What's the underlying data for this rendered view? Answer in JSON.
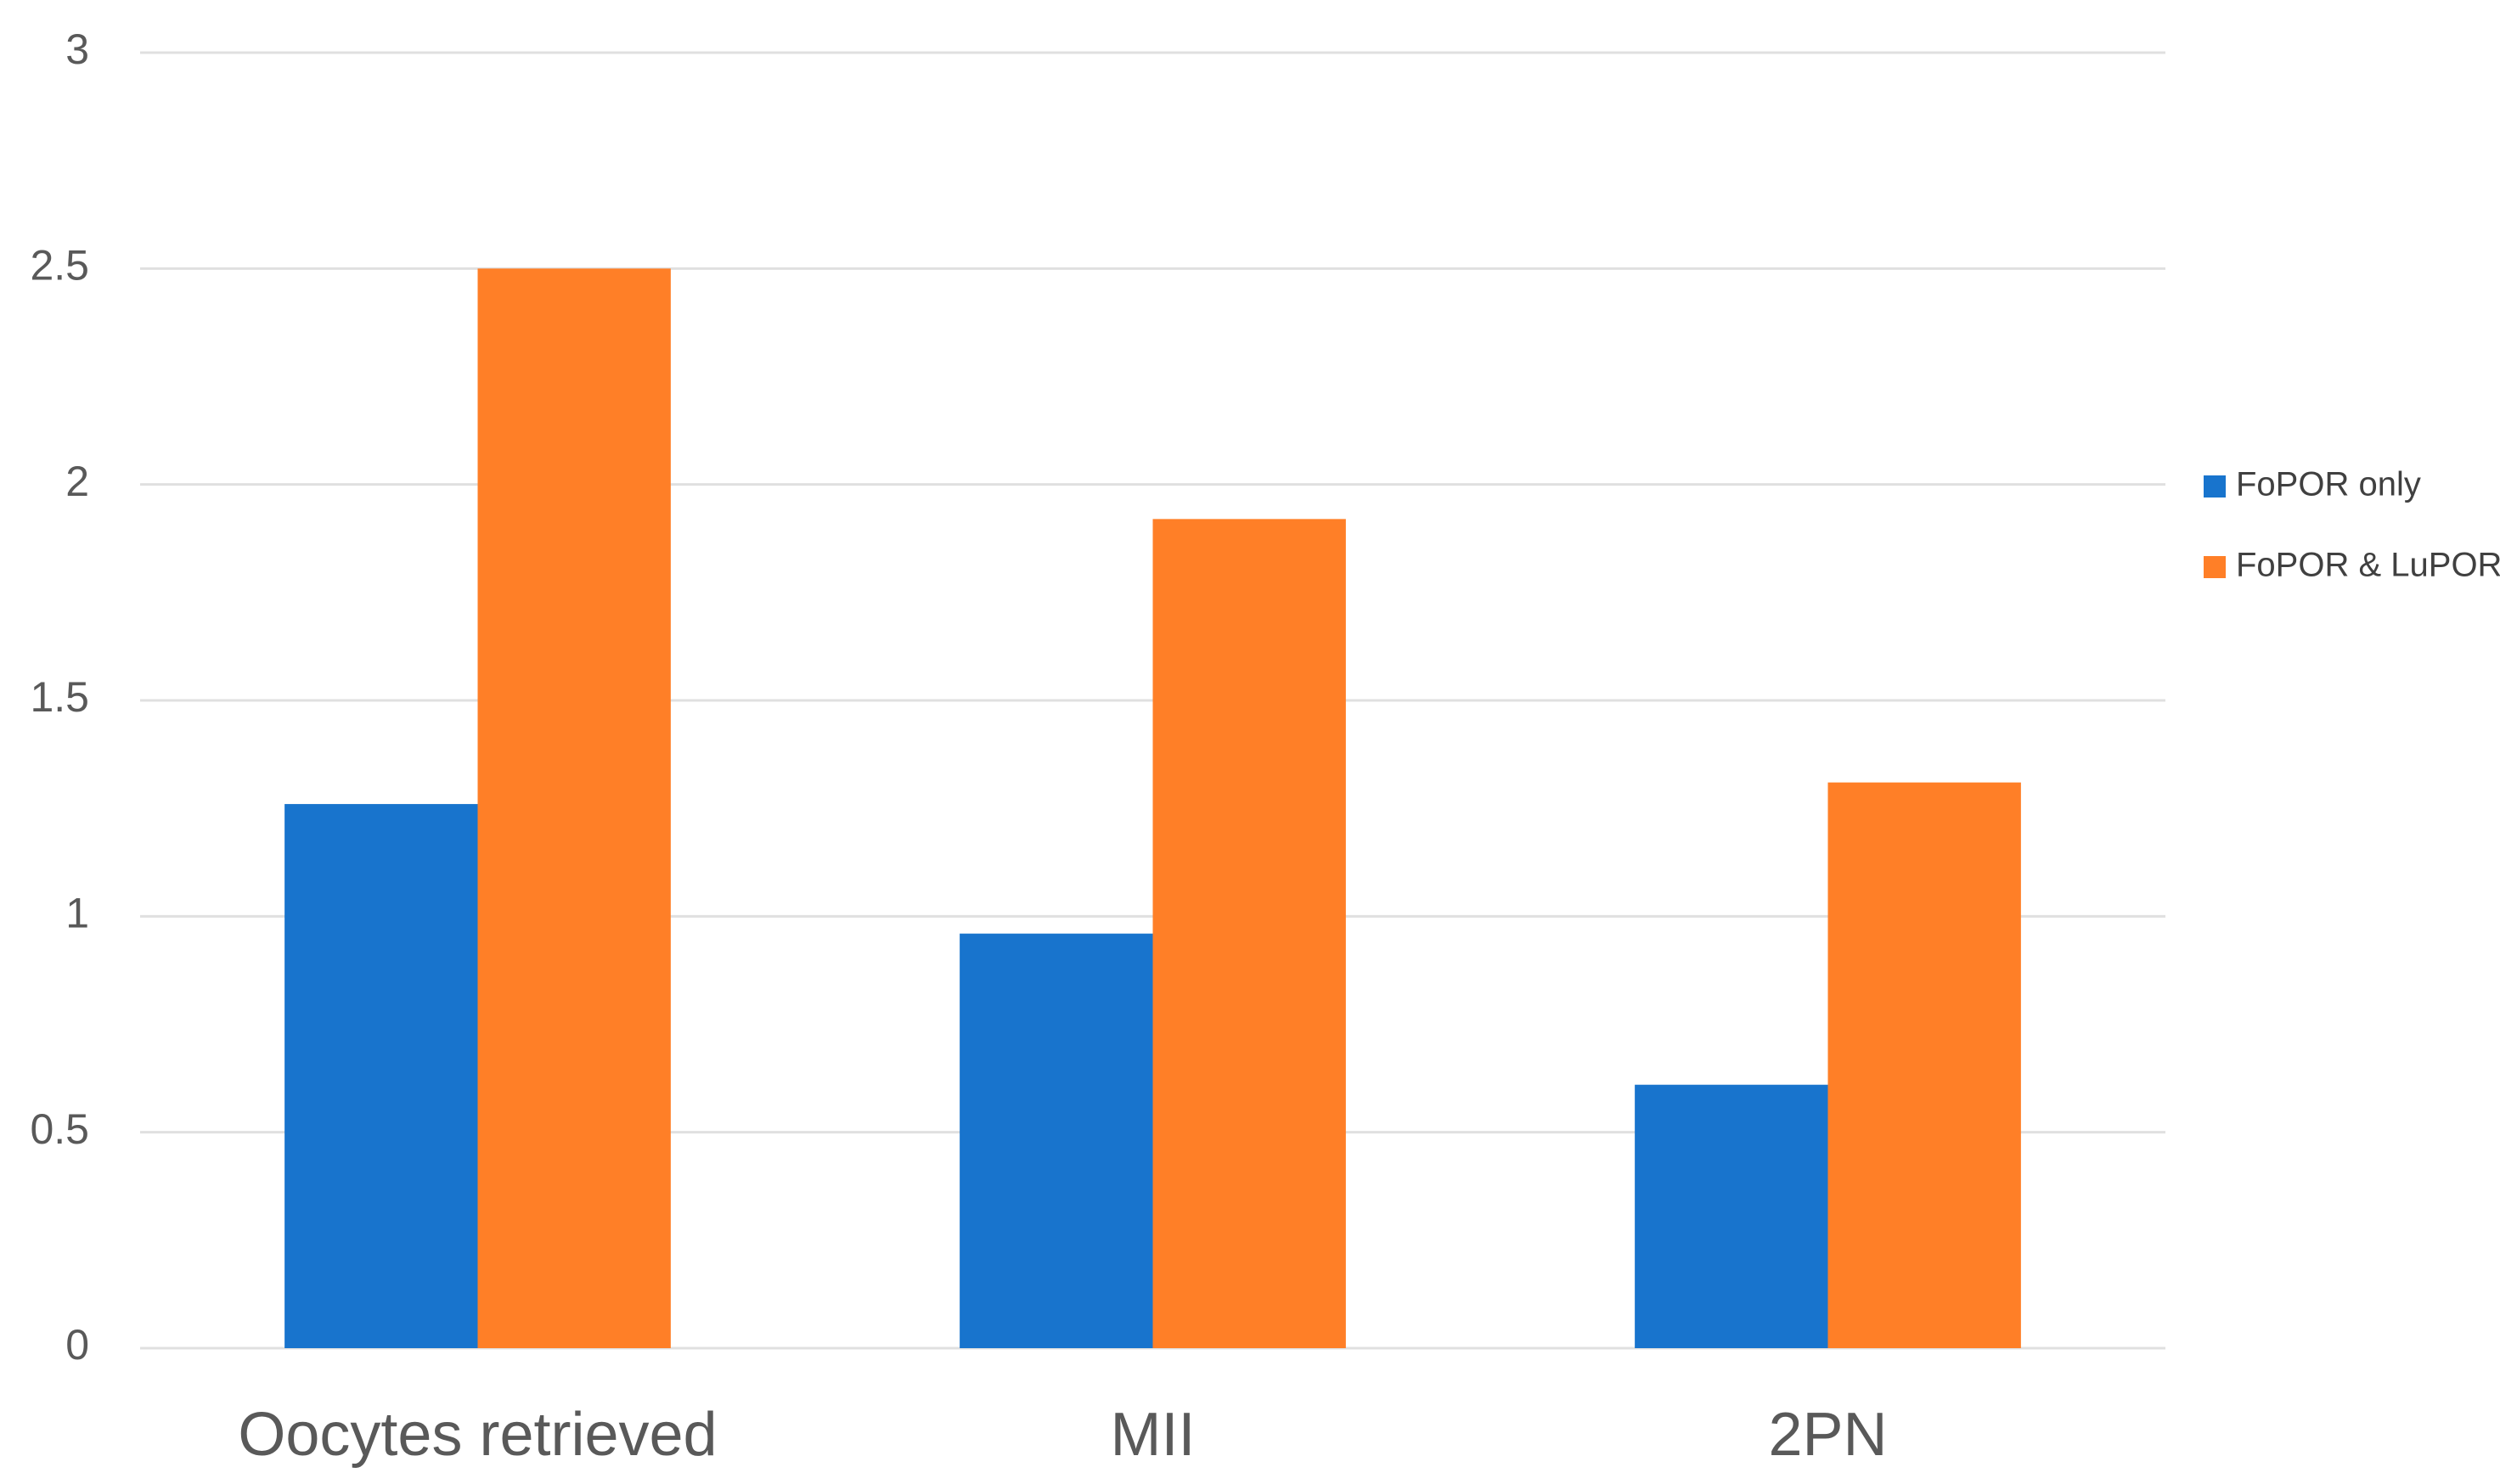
{
  "chart_data": {
    "type": "bar",
    "categories": [
      "Oocytes retrieved",
      "MII",
      "2PN"
    ],
    "series": [
      {
        "name": "FoPOR only",
        "color": "#1874cd",
        "values": [
          1.26,
          0.96,
          0.61
        ]
      },
      {
        "name": "FoPOR & LuPOR",
        "color": "#ff7f27",
        "values": [
          2.5,
          1.92,
          1.31
        ]
      }
    ],
    "ylim": [
      0,
      3
    ],
    "yticks": [
      0,
      0.5,
      1,
      1.5,
      2,
      2.5,
      3
    ],
    "grid": true,
    "legend": "right"
  }
}
